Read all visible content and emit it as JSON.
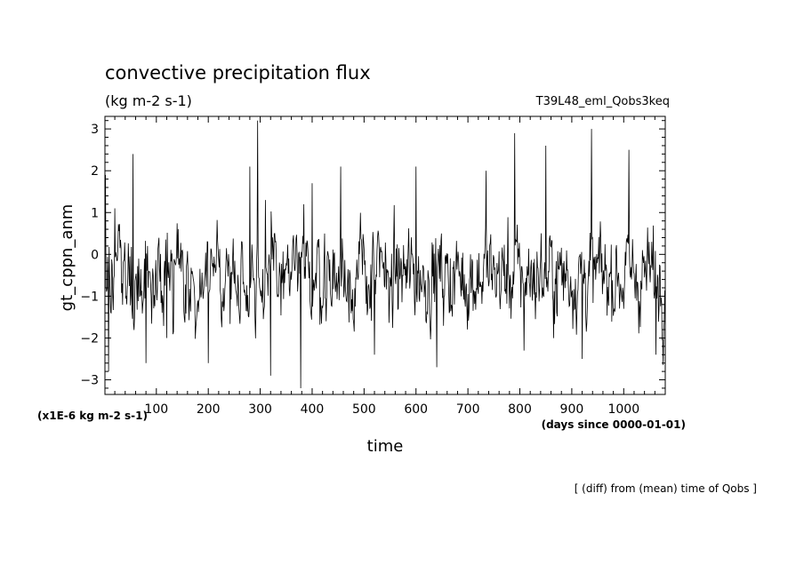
{
  "chart_data": {
    "type": "line",
    "title": "convective precipitation flux",
    "subtitle": "(kg m-2 s-1)",
    "run_label": "T39L48_eml_Qobs3keq",
    "xlabel": "time",
    "ylabel": "gt_cppn_anm",
    "y_scale_note": "(x1E-6 kg m-2 s-1)",
    "x_units_note": "(days since 0000-01-01)",
    "footnote": "[ (diff) from (mean) time of Qobs ]",
    "xlim": [
      1,
      1080
    ],
    "ylim": [
      -3.35,
      3.3
    ],
    "x_ticks": [
      100,
      200,
      300,
      400,
      500,
      600,
      700,
      800,
      900,
      1000
    ],
    "x_tick_labels": [
      "100",
      "200",
      "300",
      "400",
      "500",
      "600",
      "700",
      "800",
      "900",
      "1000"
    ],
    "y_ticks": [
      -3,
      -2,
      -1,
      0,
      1,
      2,
      3
    ],
    "y_tick_labels": [
      "−3",
      "−2",
      "−1",
      "0",
      "1",
      "2",
      "3"
    ],
    "grid": false,
    "line_color": "#000000",
    "series": [
      {
        "name": "gt_cppn_anm",
        "x_start": 1,
        "x_step": 1,
        "count": 1080,
        "seed": 3917,
        "peaks": [
          [
            2,
            1.9
          ],
          [
            8,
            -2.8
          ],
          [
            20,
            1.1
          ],
          [
            55,
            2.4
          ],
          [
            80,
            -2.6
          ],
          [
            120,
            -2.0
          ],
          [
            200,
            -2.6
          ],
          [
            280,
            2.1
          ],
          [
            295,
            3.2
          ],
          [
            310,
            1.3
          ],
          [
            320,
            -2.9
          ],
          [
            378,
            -3.2
          ],
          [
            400,
            1.7
          ],
          [
            455,
            2.1
          ],
          [
            520,
            -2.4
          ],
          [
            600,
            2.1
          ],
          [
            640,
            -2.7
          ],
          [
            735,
            2.0
          ],
          [
            790,
            2.9
          ],
          [
            808,
            -2.3
          ],
          [
            850,
            2.6
          ],
          [
            920,
            -2.5
          ],
          [
            938,
            3.0
          ],
          [
            1010,
            2.5
          ],
          [
            1062,
            -2.4
          ]
        ]
      }
    ]
  }
}
